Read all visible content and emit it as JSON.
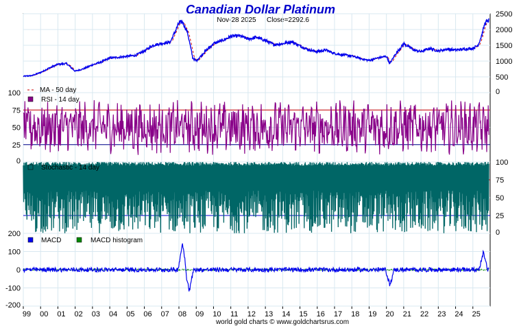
{
  "title": "Canadian Dollar Platinum",
  "subtitle": {
    "date": "Nov-28  2025",
    "close": "Close=2292.6"
  },
  "footer": "world gold charts © www.goldchartsrus.com",
  "colors": {
    "price": "#0000ee",
    "ma": "#cc0000",
    "rsi": "#880088",
    "stoch": "#006666",
    "macd": "#0000ee",
    "histogram": "#008800",
    "grid": "#d8e8f0",
    "upper_line": "#cc0000",
    "lower_line": "#000088",
    "stoch_lower": "#0000cc",
    "title": "#0000cc"
  },
  "chart_data": [
    {
      "type": "line",
      "name": "price-panel",
      "yticks": [
        "2500",
        "2000",
        "1500",
        "1000",
        "500",
        "0"
      ],
      "ylim": [
        0,
        2500
      ],
      "xlim": [
        1999,
        2026
      ],
      "legend": [
        {
          "label": "MA - 50 day",
          "style": "dash"
        }
      ],
      "series": [
        {
          "name": "price",
          "x": [
            1999.0,
            1999.5,
            2000.0,
            2000.5,
            2001.0,
            2001.5,
            2002.0,
            2002.5,
            2003.0,
            2003.5,
            2004.0,
            2004.5,
            2005.0,
            2005.5,
            2006.0,
            2006.5,
            2007.0,
            2007.5,
            2008.0,
            2008.2,
            2008.5,
            2008.8,
            2009.0,
            2009.5,
            2010.0,
            2010.5,
            2011.0,
            2011.5,
            2012.0,
            2012.5,
            2013.0,
            2013.5,
            2014.0,
            2014.5,
            2015.0,
            2015.5,
            2016.0,
            2016.5,
            2017.0,
            2017.5,
            2018.0,
            2018.5,
            2019.0,
            2019.5,
            2020.0,
            2020.2,
            2020.5,
            2021.0,
            2021.3,
            2021.6,
            2022.0,
            2022.5,
            2023.0,
            2023.5,
            2024.0,
            2024.5,
            2025.0,
            2025.3,
            2025.5,
            2025.7,
            2025.92
          ],
          "values": [
            520,
            540,
            640,
            780,
            900,
            920,
            680,
            760,
            880,
            970,
            1100,
            1120,
            1150,
            1180,
            1320,
            1500,
            1560,
            1600,
            2200,
            2250,
            1900,
            1100,
            1000,
            1300,
            1550,
            1650,
            1780,
            1800,
            1700,
            1750,
            1650,
            1520,
            1550,
            1620,
            1480,
            1360,
            1300,
            1350,
            1240,
            1200,
            1160,
            1080,
            1020,
            1100,
            1150,
            920,
            1200,
            1550,
            1450,
            1350,
            1300,
            1400,
            1320,
            1380,
            1350,
            1380,
            1400,
            1500,
            1800,
            2200,
            2292.6
          ]
        }
      ]
    },
    {
      "type": "line",
      "name": "rsi-panel",
      "yticks": [
        "100",
        "75",
        "50",
        "25",
        "0"
      ],
      "ylim": [
        0,
        100
      ],
      "reference_lines": [
        75,
        25
      ],
      "legend": [
        {
          "label": "RSI - 14 day"
        }
      ]
    },
    {
      "type": "line",
      "name": "stochastic-panel",
      "yticks": [
        "100",
        "75",
        "50",
        "25",
        "0"
      ],
      "ylim": [
        0,
        100
      ],
      "reference_lines": [
        75,
        25
      ],
      "legend": [
        {
          "label": "Stochastic - 14 day"
        }
      ]
    },
    {
      "type": "line",
      "name": "macd-panel",
      "yticks": [
        "200",
        "100",
        "0",
        "-100",
        "-200"
      ],
      "ylim": [
        -200,
        200
      ],
      "legend": [
        {
          "label": "MACD"
        },
        {
          "label": "MACD histogram"
        }
      ],
      "events": [
        {
          "x": 2008.2,
          "value": 145
        },
        {
          "x": 2008.6,
          "value": -115
        },
        {
          "x": 2020.2,
          "value": -85
        },
        {
          "x": 2025.6,
          "value": 95
        }
      ]
    }
  ],
  "x_axis": {
    "tick_labels": [
      "99",
      "00",
      "01",
      "02",
      "03",
      "04",
      "05",
      "06",
      "07",
      "08",
      "09",
      "10",
      "11",
      "12",
      "13",
      "14",
      "15",
      "16",
      "17",
      "18",
      "19",
      "20",
      "21",
      "22",
      "23",
      "24",
      "25"
    ],
    "start_year": 1999,
    "end_year": 2026
  }
}
